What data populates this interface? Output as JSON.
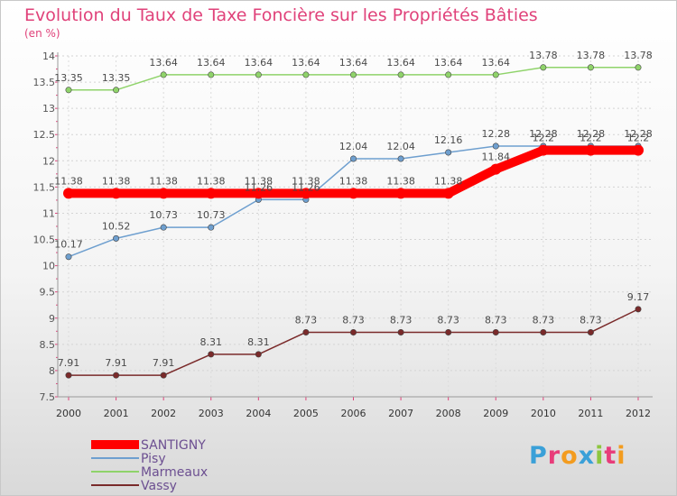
{
  "title": "Evolution du Taux de Taxe Foncière sur les Propriétés Bâties",
  "unit_label": "(en %)",
  "logo": {
    "text": "Proxiti",
    "letters": [
      {
        "ch": "P",
        "color": "#3aa0d8"
      },
      {
        "ch": "r",
        "color": "#e83c7a"
      },
      {
        "ch": "o",
        "color": "#f39c1f"
      },
      {
        "ch": "x",
        "color": "#3aa0d8"
      },
      {
        "ch": "i",
        "color": "#8dc63f"
      },
      {
        "ch": "t",
        "color": "#e83c7a"
      },
      {
        "ch": "i",
        "color": "#f39c1f"
      }
    ]
  },
  "chart_data": {
    "type": "line",
    "title": "Evolution du Taux de Taxe Foncière sur les Propriétés Bâties",
    "ylabel": "(en %)",
    "xlabel": "",
    "categories": [
      "2000",
      "2001",
      "2002",
      "2003",
      "2004",
      "2005",
      "2006",
      "2007",
      "2008",
      "2009",
      "2010",
      "2011",
      "2012"
    ],
    "ylim": [
      7.5,
      14
    ],
    "yticks": [
      "7.5",
      "8",
      "8.5",
      "9",
      "9.5",
      "10",
      "10.5",
      "11",
      "11.5",
      "12",
      "12.5",
      "13",
      "13.5",
      "14"
    ],
    "legend_position": "bottom-left",
    "series": [
      {
        "name": "SANTIGNY",
        "color": "#ff0000",
        "values": [
          11.38,
          11.38,
          11.38,
          11.38,
          11.38,
          11.38,
          11.38,
          11.38,
          11.38,
          11.84,
          12.2,
          12.2,
          12.2
        ],
        "labels": [
          "11.38",
          "11.38",
          "11.38",
          "11.38",
          "11.38",
          "11.38",
          "11.38",
          "11.38",
          "11.38",
          "11.84",
          "12.2",
          "12.2",
          "12.2"
        ]
      },
      {
        "name": "Pisy",
        "color": "#6e9fcf",
        "values": [
          10.17,
          10.52,
          10.73,
          10.73,
          11.26,
          11.26,
          12.04,
          12.04,
          12.16,
          12.28,
          12.28,
          12.28,
          12.28
        ],
        "labels": [
          "10.17",
          "10.52",
          "10.73",
          "10.73",
          "11.26",
          "11.26",
          "12.04",
          "12.04",
          "12.16",
          "12.28",
          "12.28",
          "12.28",
          "12.28"
        ]
      },
      {
        "name": "Marmeaux",
        "color": "#8fd36a",
        "values": [
          13.35,
          13.35,
          13.64,
          13.64,
          13.64,
          13.64,
          13.64,
          13.64,
          13.64,
          13.64,
          13.78,
          13.78,
          13.78
        ],
        "labels": [
          "13.35",
          "13.35",
          "13.64",
          "13.64",
          "13.64",
          "13.64",
          "13.64",
          "13.64",
          "13.64",
          "13.64",
          "13.78",
          "13.78",
          "13.78"
        ]
      },
      {
        "name": "Vassy",
        "color": "#7a2a2a",
        "values": [
          7.91,
          7.91,
          7.91,
          8.31,
          8.31,
          8.73,
          8.73,
          8.73,
          8.73,
          8.73,
          8.73,
          8.73,
          9.17
        ],
        "labels": [
          "7.91",
          "7.91",
          "7.91",
          "8.31",
          "8.31",
          "8.73",
          "8.73",
          "8.73",
          "8.73",
          "8.73",
          "8.73",
          "8.73",
          "9.17"
        ]
      }
    ]
  }
}
